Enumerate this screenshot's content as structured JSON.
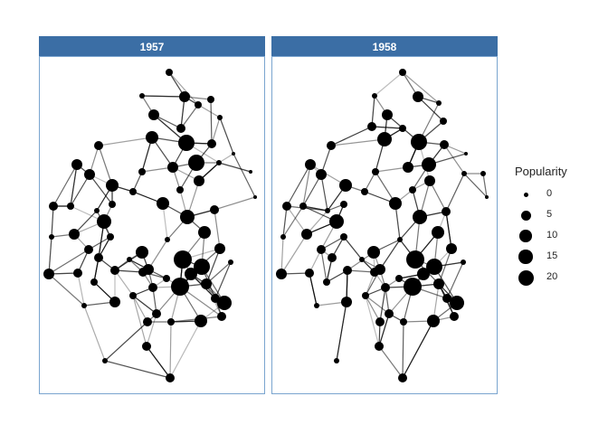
{
  "facets": [
    {
      "label": "1957"
    },
    {
      "label": "1958"
    }
  ],
  "legend": {
    "title": "Popularity",
    "items": [
      {
        "label": "0",
        "value": 0
      },
      {
        "label": "5",
        "value": 5
      },
      {
        "label": "10",
        "value": 10
      },
      {
        "label": "15",
        "value": 15
      },
      {
        "label": "20",
        "value": 20
      }
    ]
  },
  "colors": {
    "strip": "#3b6ea5",
    "panel_border": "#7aa5cf",
    "node": "#000000",
    "edge": "#000000"
  }
}
